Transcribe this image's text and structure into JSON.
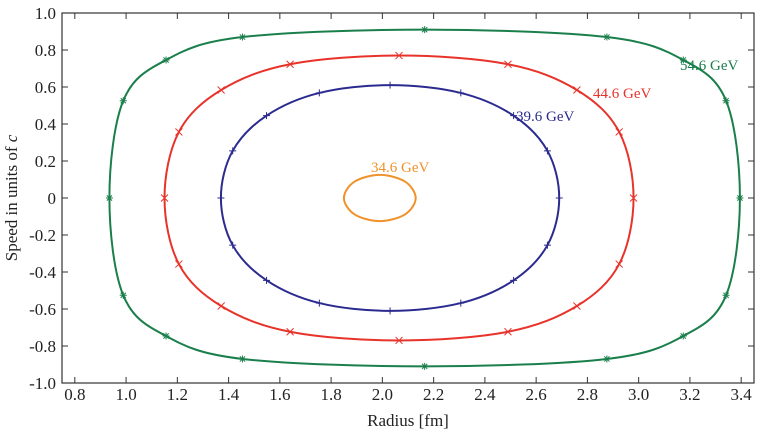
{
  "chart_data": {
    "type": "orbit",
    "xlabel": "Radius   [fm]",
    "ylabel": {
      "text": "Speed in units of",
      "symbol": "c"
    },
    "xlim": [
      0.75,
      3.45
    ],
    "xticks": [
      0.8,
      {
        "value": 1,
        "label": "1.0"
      },
      1.2,
      1.4,
      1.6,
      1.8,
      {
        "value": 2,
        "label": "2.0"
      },
      2.2,
      2.4,
      2.6,
      2.8,
      {
        "value": 3,
        "label": "3.0"
      },
      3.2,
      3.4
    ],
    "ylim": [
      -1,
      1
    ],
    "yticks": [
      {
        "value": -1,
        "label": "-1.0"
      },
      -0.8,
      -0.6,
      -0.4,
      -0.2,
      0,
      0.2,
      0.4,
      0.6,
      0.8,
      {
        "value": 1,
        "label": "1.0"
      }
    ],
    "series": [
      {
        "name": "54.6 GeV",
        "color": "#1a7f4b",
        "marker": "star",
        "x": [
          3.395,
          3.341,
          3.174,
          2.876,
          2.165,
          1.454,
          1.156,
          0.989,
          0.935,
          0.989,
          1.156,
          1.454,
          2.165,
          2.876,
          3.174,
          3.341
        ],
        "values": [
          0,
          0.526,
          0.746,
          0.87,
          0.91,
          0.87,
          0.746,
          0.526,
          0,
          -0.526,
          -0.746,
          -0.87,
          -0.91,
          -0.87,
          -0.746,
          -0.526
        ]
      },
      {
        "name": "44.6 GeV",
        "color": "#e8332a",
        "marker": "cross",
        "x": [
          2.98,
          2.924,
          2.759,
          2.49,
          2.065,
          1.64,
          1.371,
          1.206,
          1.15,
          1.206,
          1.371,
          1.64,
          2.065,
          2.49,
          2.759,
          2.924
        ],
        "values": [
          0,
          0.357,
          0.584,
          0.723,
          0.77,
          0.723,
          0.584,
          0.357,
          0,
          -0.357,
          -0.584,
          -0.723,
          -0.77,
          -0.723,
          -0.584,
          -0.357
        ]
      },
      {
        "name": "39.6 GeV",
        "color": "#2b2b8f",
        "marker": "plus",
        "x": [
          2.69,
          2.644,
          2.512,
          2.306,
          2.03,
          1.754,
          1.548,
          1.416,
          1.37,
          1.416,
          1.548,
          1.754,
          2.03,
          2.306,
          2.512,
          2.644
        ],
        "values": [
          0,
          0.255,
          0.445,
          0.568,
          0.61,
          0.568,
          0.445,
          0.255,
          0,
          -0.255,
          -0.445,
          -0.568,
          -0.61,
          -0.568,
          -0.445,
          -0.255
        ]
      },
      {
        "name": "34.6 GeV",
        "color": "#f0922a",
        "x": [
          2.13,
          2.089,
          1.99,
          1.891,
          1.85,
          1.891,
          1.99,
          2.089
        ],
        "values": [
          0,
          0.088,
          0.125,
          0.088,
          0,
          -0.088,
          -0.125,
          -0.088
        ]
      }
    ]
  }
}
